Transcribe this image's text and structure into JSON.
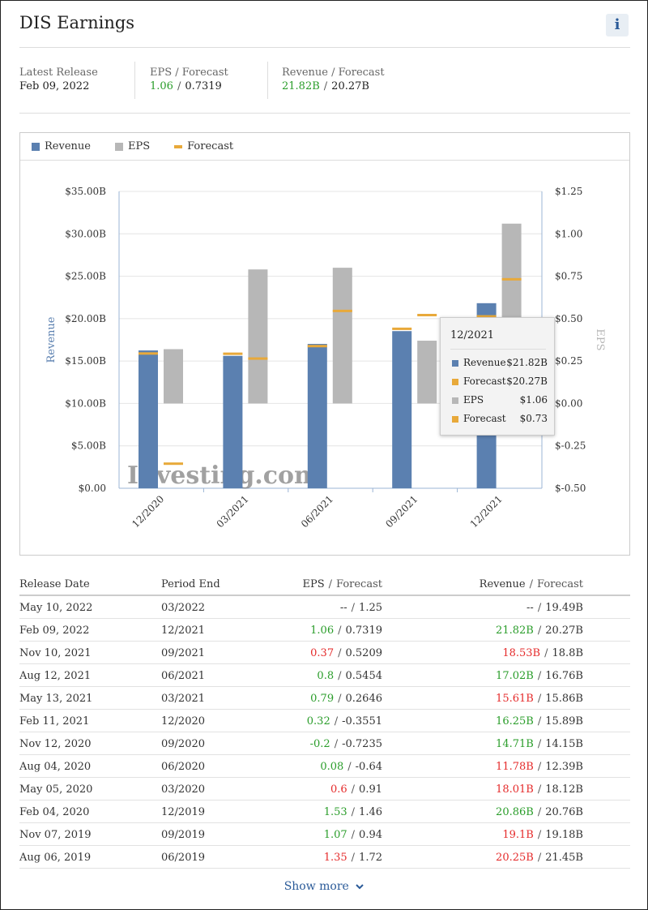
{
  "header": {
    "title": "DIS Earnings",
    "info_label": "i"
  },
  "summary": {
    "latest_release_label": "Latest Release",
    "latest_release_value": "Feb 09, 2022",
    "eps_label": "EPS / Forecast",
    "eps_actual": "1.06",
    "eps_forecast": "0.7319",
    "revenue_label": "Revenue / Forecast",
    "revenue_actual": "21.82B",
    "revenue_forecast": "20.27B",
    "separator": "/"
  },
  "colors": {
    "revenue": "#5b80b0",
    "eps": "#b7b7b7",
    "forecast": "#e8a93a",
    "green": "#2a9d2a",
    "red": "#e52b2b",
    "link": "#2a5a98"
  },
  "chart_data": {
    "type": "bar",
    "legend": [
      "Revenue",
      "EPS",
      "Forecast"
    ],
    "categories": [
      "12/2020",
      "03/2021",
      "06/2021",
      "09/2021",
      "12/2021"
    ],
    "series": [
      {
        "name": "Revenue",
        "axis": "left",
        "values": [
          16.25,
          15.61,
          17.02,
          18.53,
          21.82
        ]
      },
      {
        "name": "Revenue Forecast",
        "axis": "left",
        "values": [
          15.89,
          15.86,
          16.76,
          18.8,
          20.27
        ]
      },
      {
        "name": "EPS",
        "axis": "right",
        "values": [
          0.32,
          0.79,
          0.8,
          0.37,
          1.06
        ]
      },
      {
        "name": "EPS Forecast",
        "axis": "right",
        "values": [
          -0.3551,
          0.2646,
          0.5454,
          0.5209,
          0.7319
        ]
      }
    ],
    "left_axis": {
      "label": "Revenue",
      "ticks": [
        "$0.00",
        "$5.00B",
        "$10.00B",
        "$15.00B",
        "$20.00B",
        "$25.00B",
        "$30.00B",
        "$35.00B"
      ],
      "ylim": [
        0,
        35
      ]
    },
    "right_axis": {
      "label": "EPS",
      "ticks": [
        "$-0.50",
        "$-0.25",
        "$0.00",
        "$0.25",
        "$0.50",
        "$0.75",
        "$1.00",
        "$1.25"
      ],
      "ylim": [
        -0.5,
        1.25
      ]
    },
    "watermark": "Investing.com",
    "tooltip": {
      "title": "12/2021",
      "rows": [
        {
          "key": "Revenue",
          "value": "$21.82B",
          "color": "revenue"
        },
        {
          "key": "Forecast",
          "value": "$20.27B",
          "color": "forecast"
        },
        {
          "key": "EPS",
          "value": "$1.06",
          "color": "eps"
        },
        {
          "key": "Forecast",
          "value": "$0.73",
          "color": "forecast"
        }
      ]
    }
  },
  "table": {
    "headers": {
      "release_date": "Release Date",
      "period_end": "Period End",
      "eps": "EPS",
      "eps_forecast": "Forecast",
      "revenue": "Revenue",
      "revenue_forecast": "Forecast",
      "separator": "/"
    },
    "rows": [
      {
        "release_date": "May 10, 2022",
        "period_end": "03/2022",
        "eps": "--",
        "eps_forecast": "1.25",
        "revenue": "--",
        "revenue_forecast": "19.49B",
        "eps_status": "none",
        "rev_status": "none"
      },
      {
        "release_date": "Feb 09, 2022",
        "period_end": "12/2021",
        "eps": "1.06",
        "eps_forecast": "0.7319",
        "revenue": "21.82B",
        "revenue_forecast": "20.27B",
        "eps_status": "green",
        "rev_status": "green"
      },
      {
        "release_date": "Nov 10, 2021",
        "period_end": "09/2021",
        "eps": "0.37",
        "eps_forecast": "0.5209",
        "revenue": "18.53B",
        "revenue_forecast": "18.8B",
        "eps_status": "red",
        "rev_status": "red"
      },
      {
        "release_date": "Aug 12, 2021",
        "period_end": "06/2021",
        "eps": "0.8",
        "eps_forecast": "0.5454",
        "revenue": "17.02B",
        "revenue_forecast": "16.76B",
        "eps_status": "green",
        "rev_status": "green"
      },
      {
        "release_date": "May 13, 2021",
        "period_end": "03/2021",
        "eps": "0.79",
        "eps_forecast": "0.2646",
        "revenue": "15.61B",
        "revenue_forecast": "15.86B",
        "eps_status": "green",
        "rev_status": "red"
      },
      {
        "release_date": "Feb 11, 2021",
        "period_end": "12/2020",
        "eps": "0.32",
        "eps_forecast": "-0.3551",
        "revenue": "16.25B",
        "revenue_forecast": "15.89B",
        "eps_status": "green",
        "rev_status": "green"
      },
      {
        "release_date": "Nov 12, 2020",
        "period_end": "09/2020",
        "eps": "-0.2",
        "eps_forecast": "-0.7235",
        "revenue": "14.71B",
        "revenue_forecast": "14.15B",
        "eps_status": "green",
        "rev_status": "green"
      },
      {
        "release_date": "Aug 04, 2020",
        "period_end": "06/2020",
        "eps": "0.08",
        "eps_forecast": "-0.64",
        "revenue": "11.78B",
        "revenue_forecast": "12.39B",
        "eps_status": "green",
        "rev_status": "red"
      },
      {
        "release_date": "May 05, 2020",
        "period_end": "03/2020",
        "eps": "0.6",
        "eps_forecast": "0.91",
        "revenue": "18.01B",
        "revenue_forecast": "18.12B",
        "eps_status": "red",
        "rev_status": "red"
      },
      {
        "release_date": "Feb 04, 2020",
        "period_end": "12/2019",
        "eps": "1.53",
        "eps_forecast": "1.46",
        "revenue": "20.86B",
        "revenue_forecast": "20.76B",
        "eps_status": "green",
        "rev_status": "green"
      },
      {
        "release_date": "Nov 07, 2019",
        "period_end": "09/2019",
        "eps": "1.07",
        "eps_forecast": "0.94",
        "revenue": "19.1B",
        "revenue_forecast": "19.18B",
        "eps_status": "green",
        "rev_status": "red"
      },
      {
        "release_date": "Aug 06, 2019",
        "period_end": "06/2019",
        "eps": "1.35",
        "eps_forecast": "1.72",
        "revenue": "20.25B",
        "revenue_forecast": "21.45B",
        "eps_status": "red",
        "rev_status": "red"
      }
    ]
  },
  "footer": {
    "show_more_label": "Show more",
    "show_more_icon": "chevron-down-icon"
  }
}
